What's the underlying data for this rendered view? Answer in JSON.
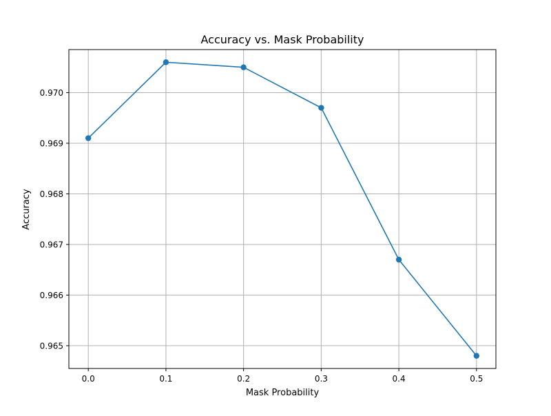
{
  "chart_data": {
    "type": "line",
    "title": "Accuracy vs. Mask Probability",
    "xlabel": "Mask Probability",
    "ylabel": "Accuracy",
    "x": [
      0.0,
      0.1,
      0.2,
      0.3,
      0.4,
      0.5
    ],
    "series": [
      {
        "values": [
          0.9691,
          0.9706,
          0.9705,
          0.9697,
          0.9667,
          0.9648
        ],
        "color": "#1f77b4",
        "marker": "circle"
      }
    ],
    "xlim": [
      -0.025,
      0.525
    ],
    "ylim": [
      0.96455,
      0.97085
    ],
    "xticks": [
      0.0,
      0.1,
      0.2,
      0.3,
      0.4,
      0.5
    ],
    "xtick_labels": [
      "0.0",
      "0.1",
      "0.2",
      "0.3",
      "0.4",
      "0.5"
    ],
    "yticks": [
      0.965,
      0.966,
      0.967,
      0.968,
      0.969,
      0.97
    ],
    "ytick_labels": [
      "0.965",
      "0.966",
      "0.967",
      "0.968",
      "0.969",
      "0.970"
    ],
    "grid": true,
    "legend": false
  }
}
